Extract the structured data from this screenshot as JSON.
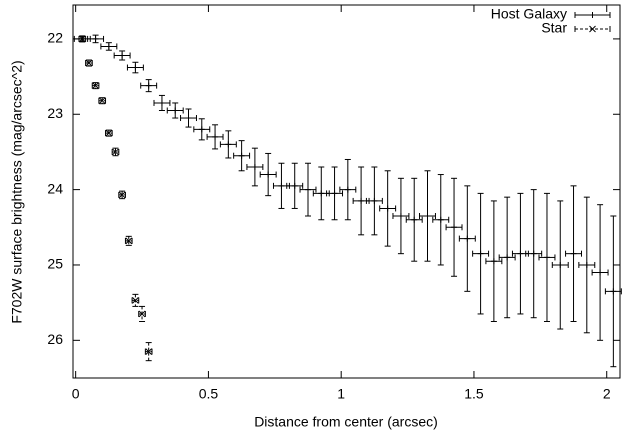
{
  "chart_data": {
    "type": "errorbar",
    "x_label": "Distance from center (arcsec)",
    "y_label": "F702W surface brightness (mag/arcsec^2)",
    "xlim": [
      -0.01,
      2.05
    ],
    "xticks": [
      0,
      0.5,
      1,
      1.5,
      2
    ],
    "ylim": [
      21.55,
      26.5
    ],
    "yticks": [
      22,
      23,
      24,
      25,
      26
    ],
    "y_reversed": true,
    "legend": "top-right",
    "series": [
      {
        "name": "Host Galaxy",
        "color": "#000000",
        "line_style": "solid",
        "marker": "+",
        "x": [
          0.025,
          0.075,
          0.125,
          0.175,
          0.225,
          0.275,
          0.325,
          0.375,
          0.425,
          0.475,
          0.525,
          0.575,
          0.625,
          0.675,
          0.725,
          0.775,
          0.825,
          0.875,
          0.925,
          0.975,
          1.025,
          1.075,
          1.125,
          1.175,
          1.225,
          1.275,
          1.325,
          1.375,
          1.425,
          1.475,
          1.525,
          1.575,
          1.625,
          1.675,
          1.725,
          1.775,
          1.825,
          1.875,
          1.925,
          1.975,
          2.025
        ],
        "values": [
          22.0,
          22.0,
          22.1,
          22.22,
          22.38,
          22.62,
          22.85,
          22.95,
          23.05,
          23.2,
          23.3,
          23.4,
          23.55,
          23.7,
          23.8,
          23.95,
          23.95,
          24.0,
          24.05,
          24.05,
          24.0,
          24.15,
          24.15,
          24.25,
          24.35,
          24.4,
          24.35,
          24.4,
          24.5,
          24.65,
          24.85,
          24.95,
          24.9,
          24.85,
          24.85,
          24.9,
          25.0,
          24.85,
          25.0,
          25.1,
          25.35
        ],
        "yerr": [
          0.03,
          0.05,
          0.05,
          0.06,
          0.07,
          0.08,
          0.1,
          0.1,
          0.12,
          0.14,
          0.16,
          0.18,
          0.2,
          0.25,
          0.28,
          0.3,
          0.3,
          0.35,
          0.35,
          0.35,
          0.4,
          0.45,
          0.45,
          0.5,
          0.5,
          0.55,
          0.6,
          0.6,
          0.65,
          0.7,
          0.8,
          0.8,
          0.8,
          0.8,
          0.85,
          0.85,
          0.85,
          0.9,
          0.9,
          0.9,
          1.0
        ],
        "xerr": [
          0.03,
          0.03,
          0.03,
          0.03,
          0.03,
          0.03,
          0.03,
          0.03,
          0.03,
          0.03,
          0.03,
          0.03,
          0.03,
          0.03,
          0.03,
          0.03,
          0.03,
          0.03,
          0.03,
          0.03,
          0.03,
          0.03,
          0.03,
          0.03,
          0.03,
          0.03,
          0.03,
          0.03,
          0.03,
          0.03,
          0.03,
          0.03,
          0.03,
          0.03,
          0.03,
          0.03,
          0.03,
          0.03,
          0.03,
          0.03,
          0.03
        ]
      },
      {
        "name": "Star",
        "color": "#000000",
        "line_style": "dashed",
        "marker": "x",
        "x": [
          0.025,
          0.05,
          0.075,
          0.1,
          0.125,
          0.15,
          0.175,
          0.2,
          0.225,
          0.25,
          0.275
        ],
        "values": [
          22.0,
          22.32,
          22.62,
          22.82,
          23.25,
          23.5,
          24.07,
          24.68,
          25.47,
          25.65,
          26.15
        ],
        "yerr": [
          0.04,
          0.04,
          0.04,
          0.04,
          0.04,
          0.05,
          0.05,
          0.06,
          0.08,
          0.1,
          0.12
        ],
        "xerr": [
          0.0125,
          0.0125,
          0.0125,
          0.0125,
          0.0125,
          0.0125,
          0.0125,
          0.0125,
          0.0125,
          0.0125,
          0.0125
        ]
      }
    ]
  }
}
